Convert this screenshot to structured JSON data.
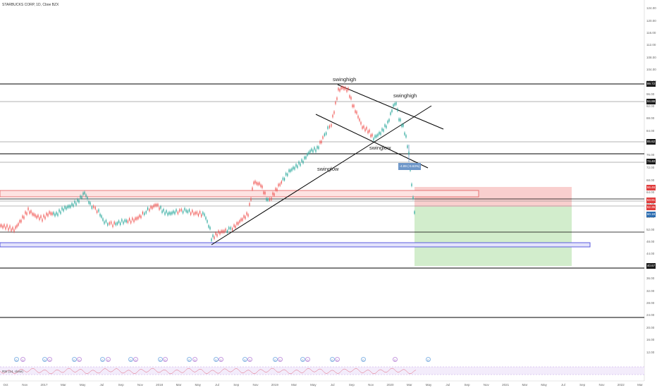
{
  "header": {
    "symbol_text": "STARBUCKS CORP, 1D, Cboe BZX"
  },
  "annotations": {
    "swinghigh_1": "swinghigh",
    "swinghigh_2": "swinghigh",
    "swinglow_1": "swinglow",
    "swinglow_2": "swinglow"
  },
  "tool_tag": "-4.89 (-5.63%) 5d",
  "rsi_label": "RSI (14, close)",
  "price_axis": {
    "ticks": [
      "124.00",
      "120.00",
      "116.00",
      "112.00",
      "108.00",
      "104.00",
      "100.00",
      "96.00",
      "92.00",
      "88.00",
      "84.00",
      "80.00",
      "76.00",
      "72.00",
      "68.00",
      "64.00",
      "60.00",
      "56.00",
      "52.00",
      "48.00",
      "44.00",
      "40.00",
      "36.00",
      "32.00",
      "28.00",
      "24.00",
      "20.00",
      "16.00",
      "12.00"
    ],
    "badges": [
      {
        "text": "99.72",
        "color": "#1a1a1a"
      },
      {
        "text": "94.88",
        "color": "#1a1a1a"
      },
      {
        "text": "85.62",
        "color": "#1a1a1a"
      },
      {
        "text": "74.40",
        "color": "#1a1a1a"
      },
      {
        "text": "66.46",
        "color": "#e03c3c"
      },
      {
        "text": "63.91",
        "color": "#e03c3c"
      },
      {
        "text": "62.35",
        "color": "#e03c3c"
      },
      {
        "text": "60.18",
        "color": "#2b6cb0"
      },
      {
        "text": "40.67",
        "color": "#1a1a1a"
      }
    ]
  },
  "time_axis": {
    "labels": [
      "Oct",
      "Nov",
      "2017",
      "Mar",
      "May",
      "Jul",
      "Sep",
      "Nov",
      "2018",
      "Mar",
      "May",
      "Jul",
      "Sep",
      "Nov",
      "2019",
      "Mar",
      "May",
      "Jul",
      "Sep",
      "Nov",
      "2020",
      "Mar",
      "May",
      "Jul",
      "Sep",
      "Nov",
      "2021",
      "Mar",
      "May",
      "Jul",
      "Sep",
      "Nov",
      "2022",
      "Mar"
    ]
  },
  "events": [
    "D",
    "D",
    "D",
    "D",
    "D",
    "D",
    "D",
    "D",
    "D",
    "D",
    "D",
    "D",
    "D",
    "D",
    "D",
    "D",
    "D",
    "D",
    "D",
    "D",
    "D",
    "D",
    "D",
    "D",
    "D",
    "D",
    "D"
  ],
  "colors": {
    "up_candle": "#26a69a",
    "down_candle": "#ef5350",
    "stop_zone": "#f8c7c5",
    "target_zone": "#cdebc7",
    "support_box": "#4b4bdc",
    "resistance_box": "#e35b5b"
  }
}
